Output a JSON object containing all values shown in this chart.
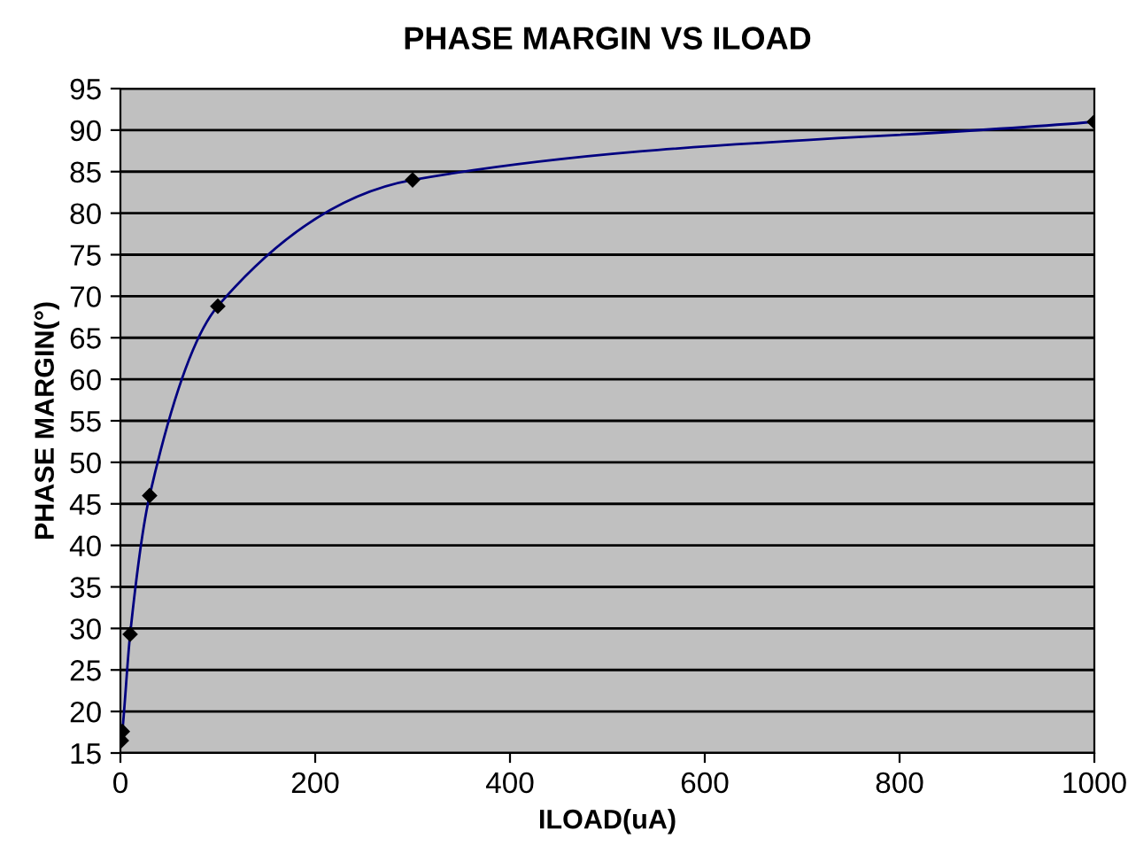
{
  "chart_data": {
    "type": "line",
    "title": "PHASE MARGIN VS ILOAD",
    "xlabel": "ILOAD(uA)",
    "ylabel": "PHASE MARGIN(°)",
    "x": [
      1,
      2,
      10,
      30,
      100,
      300,
      1000
    ],
    "series": [
      {
        "color": "#000080",
        "values": [
          16.5,
          17.6,
          29.3,
          46,
          68.8,
          84,
          91
        ]
      }
    ],
    "xlim": [
      0,
      1000
    ],
    "xticks": [
      0,
      200,
      400,
      600,
      800,
      1000
    ],
    "ylim": [
      15,
      95
    ],
    "yticks": [
      15,
      20,
      25,
      30,
      35,
      40,
      45,
      50,
      55,
      60,
      65,
      70,
      75,
      80,
      85,
      90,
      95
    ],
    "grid": "y",
    "marker": "diamond",
    "line_style": "solid"
  }
}
